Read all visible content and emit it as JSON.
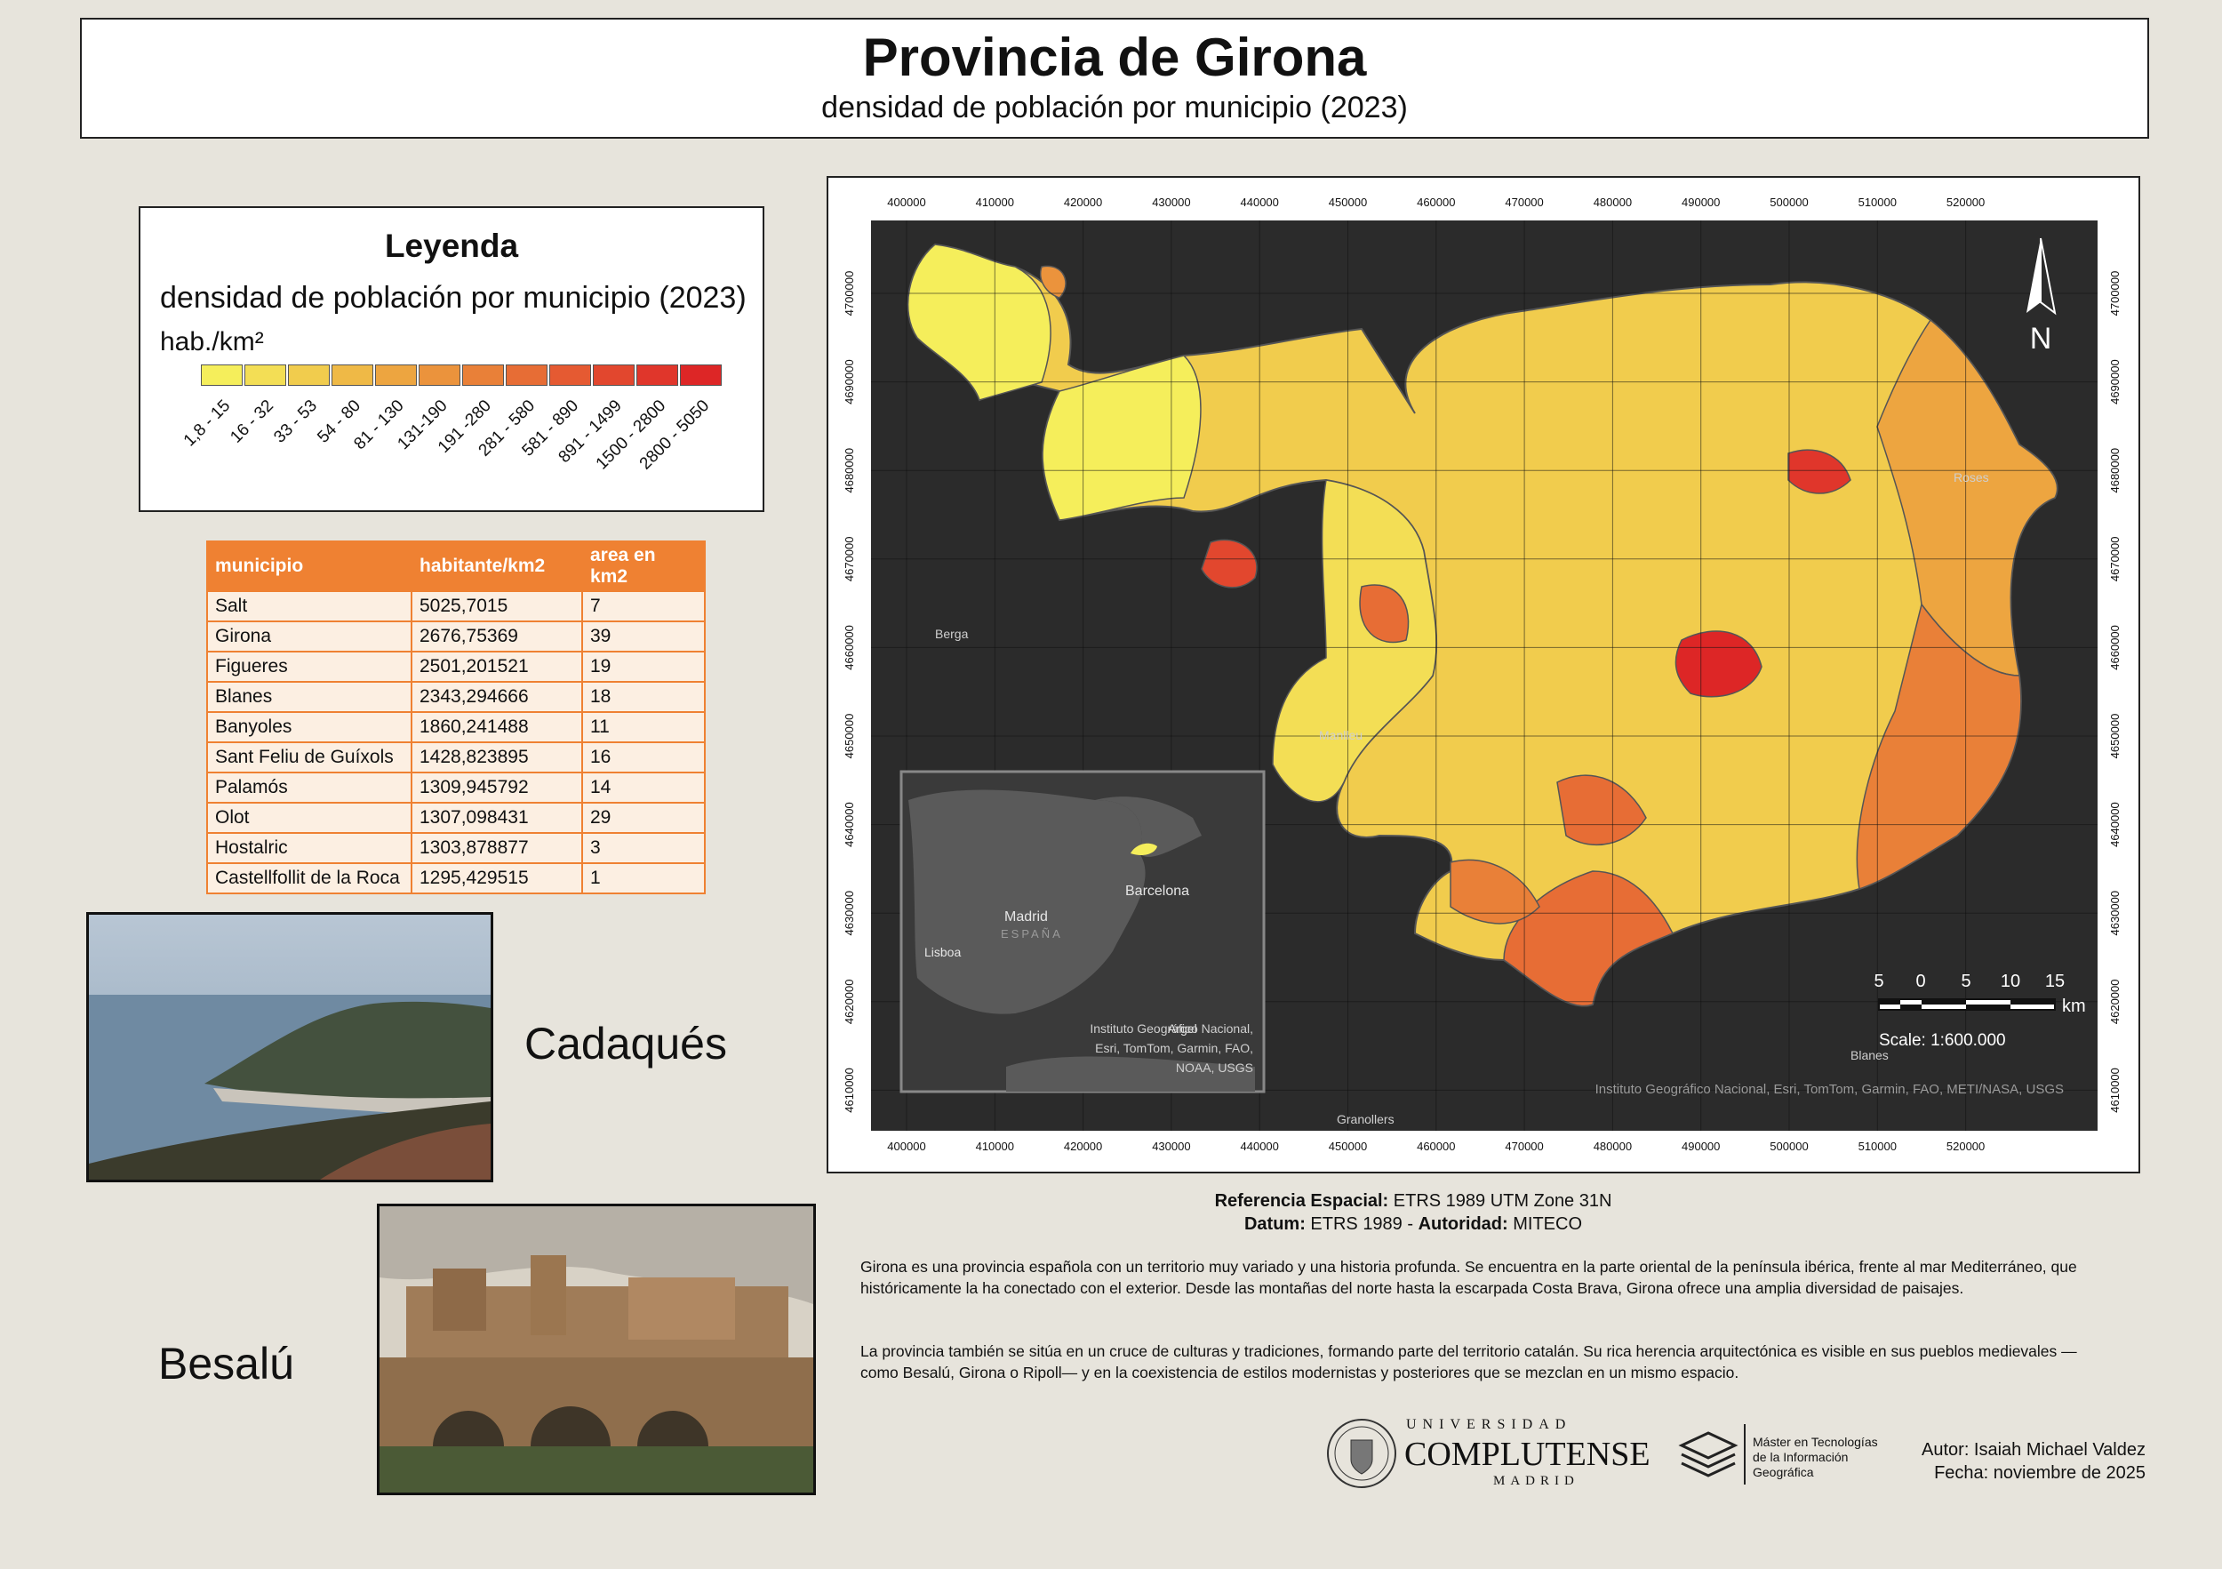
{
  "title": "Provincia de Girona",
  "subtitle": "densidad de población por municipio (2023)",
  "legend": {
    "title": "Leyenda",
    "subtitle": "densidad de población por municipio (2023)",
    "unit": "hab./km²",
    "classes": [
      {
        "label": "1,8 - 15",
        "color": "#f5ee5b"
      },
      {
        "label": "16 - 32",
        "color": "#f3de55"
      },
      {
        "label": "33 - 53",
        "color": "#f1cc4d"
      },
      {
        "label": "54 - 80",
        "color": "#efb946"
      },
      {
        "label": "81 - 130",
        "color": "#eda540"
      },
      {
        "label": "131-190",
        "color": "#eb933c"
      },
      {
        "label": "191 -280",
        "color": "#e98038"
      },
      {
        "label": "281 - 580",
        "color": "#e76d35"
      },
      {
        "label": "581 - 890",
        "color": "#e55a32"
      },
      {
        "label": "891 - 1499",
        "color": "#e2472e"
      },
      {
        "label": "1500 - 2800",
        "color": "#e0362b"
      },
      {
        "label": "2800 - 5050",
        "color": "#dd2626"
      }
    ]
  },
  "table": {
    "headers": [
      "municipio",
      "habitante/km2",
      "area en km2"
    ],
    "rows": [
      [
        "Salt",
        "5025,7015",
        "7"
      ],
      [
        "Girona",
        "2676,75369",
        "39"
      ],
      [
        "Figueres",
        "2501,201521",
        "19"
      ],
      [
        "Blanes",
        "2343,294666",
        "18"
      ],
      [
        "Banyoles",
        "1860,241488",
        "11"
      ],
      [
        "Sant Feliu de Guíxols",
        "1428,823895",
        "16"
      ],
      [
        "Palamós",
        "1309,945792",
        "14"
      ],
      [
        "Olot",
        "1307,098431",
        "29"
      ],
      [
        "Hostalric",
        "1303,878877",
        "3"
      ],
      [
        "Castellfollit de la Roca",
        "1295,429515",
        "1"
      ]
    ]
  },
  "photos": {
    "cadaques_label": "Cadaqués",
    "besalu_label": "Besalú"
  },
  "map": {
    "x_ticks": [
      "400000",
      "410000",
      "420000",
      "430000",
      "440000",
      "450000",
      "460000",
      "470000",
      "480000",
      "490000",
      "500000",
      "510000",
      "520000"
    ],
    "y_ticks": [
      "4700000",
      "4690000",
      "4680000",
      "4670000",
      "4660000",
      "4650000",
      "4640000",
      "4630000",
      "4620000",
      "4610000"
    ],
    "places": [
      "Berga",
      "Manlleu",
      "Roses",
      "Blanes",
      "Granollers"
    ],
    "north_label": "N",
    "scale_ticks": [
      "5",
      "0",
      "5",
      "10",
      "15"
    ],
    "scale_unit": "km",
    "scale_text": "Scale: 1:600.000",
    "attribution": "Instituto Geográfico Nacional, Esri, TomTom, Garmin, FAO, METI/NASA, USGS",
    "inset": {
      "places": [
        "Madrid",
        "ESPAÑA",
        "Lisboa",
        "Barcelona",
        "Argel"
      ],
      "attribution": [
        "Instituto Geográfico Nacional,",
        "Esri, TomTom, Garmin, FAO,",
        "NOAA, USGS"
      ]
    }
  },
  "reference": {
    "line1_label": "Referencia Espacial:",
    "line1_value": " ETRS 1989 UTM Zone 31N",
    "line2_label": "Datum:",
    "line2_value": " ETRS 1989 - ",
    "line2_label2": "Autoridad:",
    "line2_value2": " MITECO"
  },
  "paragraphs": [
    "Girona es una provincia española con un territorio muy variado y una historia profunda. Se encuentra en la parte oriental de la península ibérica, frente al mar Mediterráneo, que históricamente la ha conectado con el exterior. Desde las montañas del norte hasta la escarpada Costa Brava, Girona ofrece una amplia diversidad de paisajes.",
    "La provincia también se sitúa en un cruce de culturas y tradiciones, formando parte del territorio catalán. Su rica herencia arquitectónica es visible en sus pueblos medievales —como Besalú, Girona o Ripoll— y en la coexistencia de estilos modernistas y posteriores que se mezclan en un mismo espacio."
  ],
  "logos": {
    "ucm_top": "UNIVERSIDAD",
    "ucm_main": "COMPLUTENSE",
    "ucm_bottom": "MADRID",
    "master_line1": "Máster en Tecnologías",
    "master_line2": "de la Información",
    "master_line3": "Geográfica"
  },
  "credits": {
    "author": "Autor: Isaiah Michael Valdez",
    "date": "Fecha: noviembre de 2025"
  }
}
